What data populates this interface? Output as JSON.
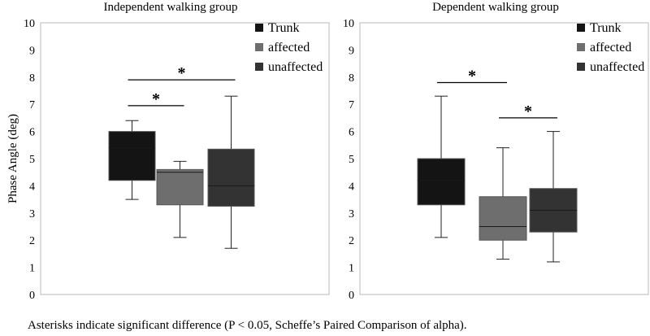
{
  "colors": {
    "trunk": "#141414",
    "affected": "#6e6e6e",
    "unaffected": "#333333",
    "axis": "#b8b8b8",
    "whisker": "#222222"
  },
  "chart_data": [
    {
      "type": "box",
      "title": "Independent walking group",
      "xlabel": "",
      "ylabel": "Phase Angle (deg)",
      "ylim": [
        0,
        10
      ],
      "yticks": [
        "0",
        "1",
        "2",
        "3",
        "4",
        "5",
        "6",
        "7",
        "8",
        "9",
        "10"
      ],
      "legend": [
        "Trunk",
        "affected",
        "unaffected"
      ],
      "legend_position": "top-right",
      "series": [
        {
          "name": "Trunk",
          "min": 3.5,
          "q1": 4.2,
          "median": 5.4,
          "q3": 6.0,
          "max": 6.4
        },
        {
          "name": "affected",
          "min": 2.1,
          "q1": 3.3,
          "median": 4.5,
          "q3": 4.6,
          "max": 4.9
        },
        {
          "name": "unaffected",
          "min": 1.7,
          "q1": 3.25,
          "median": 4.0,
          "q3": 5.35,
          "max": 7.3
        }
      ],
      "significance": [
        {
          "from": 0,
          "to": 1,
          "y": 6.95,
          "label": "*"
        },
        {
          "from": 0,
          "to": 2,
          "y": 7.9,
          "label": "*"
        }
      ]
    },
    {
      "type": "box",
      "title": "Dependent walking group",
      "xlabel": "",
      "ylabel": "",
      "ylim": [
        0,
        10
      ],
      "yticks": [
        "0",
        "1",
        "2",
        "3",
        "4",
        "5",
        "6",
        "7",
        "8",
        "9",
        "10"
      ],
      "legend": [
        "Trunk",
        "affected",
        "unaffected"
      ],
      "legend_position": "top-right",
      "series": [
        {
          "name": "Trunk",
          "min": 2.1,
          "q1": 3.3,
          "median": 4.2,
          "q3": 5.0,
          "max": 7.3
        },
        {
          "name": "affected",
          "min": 1.3,
          "q1": 2.0,
          "median": 2.5,
          "q3": 3.6,
          "max": 5.4
        },
        {
          "name": "unaffected",
          "min": 1.2,
          "q1": 2.3,
          "median": 3.1,
          "q3": 3.9,
          "max": 6.0
        }
      ],
      "significance": [
        {
          "from": 0,
          "to": 1,
          "y": 7.8,
          "label": "*"
        },
        {
          "from": 1,
          "to": 2,
          "y": 6.5,
          "label": "*"
        }
      ]
    }
  ],
  "caption": "Asterisks indicate significant difference (P < 0.05, Scheffe’s Paired Comparison of alpha)."
}
